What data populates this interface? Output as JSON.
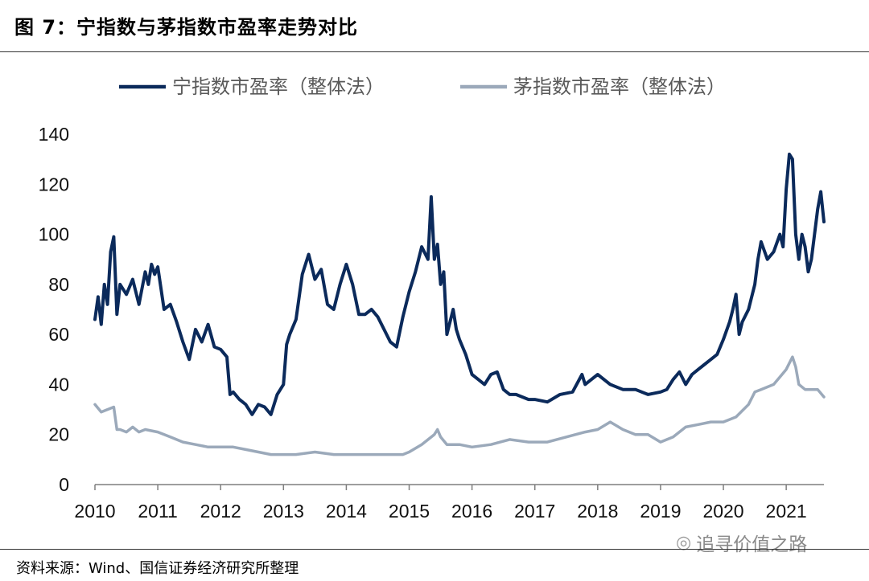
{
  "figure": {
    "title": "图 7：宁指数与茅指数市盈率走势对比",
    "source": "资料来源：Wind、国信证券经济研究所整理",
    "watermark": "追寻价值之路",
    "watermark_icon": "wechat-icon"
  },
  "chart_data": {
    "type": "line",
    "title": "图 7：宁指数与茅指数市盈率走势对比",
    "xlabel": "",
    "ylabel": "",
    "ylim": [
      0,
      140
    ],
    "xlim": [
      2010,
      2021.6
    ],
    "yticks": [
      "0",
      "20",
      "40",
      "60",
      "80",
      "100",
      "120",
      "140"
    ],
    "xticks": [
      "2010",
      "2011",
      "2012",
      "2013",
      "2014",
      "2015",
      "2016",
      "2017",
      "2018",
      "2019",
      "2020",
      "2021"
    ],
    "grid": false,
    "legend_position": "top",
    "series": [
      {
        "name": "宁指数市盈率（整体法）",
        "color": "#0b2a5b",
        "x": [
          2010.0,
          2010.05,
          2010.1,
          2010.15,
          2010.2,
          2010.25,
          2010.3,
          2010.35,
          2010.4,
          2010.5,
          2010.6,
          2010.7,
          2010.8,
          2010.85,
          2010.9,
          2010.95,
          2011.0,
          2011.1,
          2011.2,
          2011.3,
          2011.4,
          2011.5,
          2011.6,
          2011.7,
          2011.8,
          2011.9,
          2012.0,
          2012.1,
          2012.15,
          2012.2,
          2012.3,
          2012.4,
          2012.5,
          2012.6,
          2012.7,
          2012.8,
          2012.9,
          2013.0,
          2013.05,
          2013.1,
          2013.2,
          2013.3,
          2013.4,
          2013.5,
          2013.6,
          2013.7,
          2013.8,
          2013.9,
          2014.0,
          2014.1,
          2014.2,
          2014.3,
          2014.4,
          2014.5,
          2014.6,
          2014.7,
          2014.8,
          2014.9,
          2015.0,
          2015.1,
          2015.2,
          2015.3,
          2015.35,
          2015.4,
          2015.45,
          2015.5,
          2015.55,
          2015.6,
          2015.7,
          2015.75,
          2015.8,
          2015.9,
          2016.0,
          2016.1,
          2016.2,
          2016.3,
          2016.4,
          2016.5,
          2016.6,
          2016.7,
          2016.8,
          2016.9,
          2017.0,
          2017.2,
          2017.4,
          2017.6,
          2017.75,
          2017.8,
          2017.9,
          2018.0,
          2018.2,
          2018.4,
          2018.6,
          2018.8,
          2019.0,
          2019.1,
          2019.2,
          2019.3,
          2019.4,
          2019.5,
          2019.6,
          2019.7,
          2019.8,
          2019.9,
          2020.0,
          2020.1,
          2020.15,
          2020.2,
          2020.25,
          2020.3,
          2020.4,
          2020.5,
          2020.55,
          2020.6,
          2020.7,
          2020.8,
          2020.9,
          2020.95,
          2021.0,
          2021.05,
          2021.1,
          2021.15,
          2021.2,
          2021.25,
          2021.3,
          2021.35,
          2021.4,
          2021.45,
          2021.5,
          2021.55,
          2021.6
        ],
        "values": [
          66,
          75,
          64,
          80,
          72,
          93,
          99,
          68,
          80,
          76,
          82,
          72,
          85,
          80,
          88,
          84,
          87,
          70,
          72,
          65,
          57,
          50,
          62,
          57,
          64,
          55,
          54,
          51,
          36,
          37,
          34,
          32,
          28,
          32,
          31,
          28,
          36,
          40,
          56,
          60,
          66,
          84,
          92,
          82,
          86,
          72,
          70,
          80,
          88,
          80,
          68,
          68,
          70,
          67,
          62,
          57,
          55,
          67,
          77,
          85,
          95,
          90,
          115,
          90,
          96,
          80,
          85,
          60,
          70,
          62,
          58,
          52,
          44,
          42,
          40,
          44,
          45,
          38,
          36,
          36,
          35,
          34,
          34,
          33,
          36,
          37,
          44,
          40,
          42,
          44,
          40,
          38,
          38,
          36,
          37,
          38,
          42,
          45,
          40,
          44,
          46,
          48,
          50,
          52,
          58,
          65,
          70,
          76,
          60,
          65,
          70,
          80,
          90,
          97,
          90,
          93,
          100,
          95,
          118,
          132,
          130,
          100,
          90,
          100,
          95,
          85,
          90,
          100,
          110,
          117,
          105
        ]
      },
      {
        "name": "茅指数市盈率（整体法）",
        "color": "#9ba9ba",
        "x": [
          2010.0,
          2010.1,
          2010.2,
          2010.3,
          2010.35,
          2010.4,
          2010.5,
          2010.6,
          2010.7,
          2010.8,
          2011.0,
          2011.2,
          2011.4,
          2011.6,
          2011.8,
          2012.0,
          2012.2,
          2012.4,
          2012.6,
          2012.8,
          2013.0,
          2013.2,
          2013.5,
          2013.8,
          2014.0,
          2014.3,
          2014.6,
          2014.9,
          2015.0,
          2015.2,
          2015.4,
          2015.45,
          2015.5,
          2015.6,
          2015.8,
          2016.0,
          2016.3,
          2016.6,
          2016.9,
          2017.2,
          2017.5,
          2017.8,
          2018.0,
          2018.2,
          2018.4,
          2018.6,
          2018.8,
          2019.0,
          2019.2,
          2019.4,
          2019.6,
          2019.8,
          2020.0,
          2020.2,
          2020.4,
          2020.5,
          2020.6,
          2020.8,
          2020.9,
          2021.0,
          2021.1,
          2021.15,
          2021.2,
          2021.3,
          2021.4,
          2021.5,
          2021.6
        ],
        "values": [
          32,
          29,
          30,
          31,
          22,
          22,
          21,
          23,
          21,
          22,
          21,
          19,
          17,
          16,
          15,
          15,
          15,
          14,
          13,
          12,
          12,
          12,
          13,
          12,
          12,
          12,
          12,
          12,
          13,
          16,
          20,
          22,
          19,
          16,
          16,
          15,
          16,
          18,
          17,
          17,
          19,
          21,
          22,
          25,
          22,
          20,
          20,
          17,
          19,
          23,
          24,
          25,
          25,
          27,
          32,
          37,
          38,
          40,
          43,
          46,
          51,
          47,
          40,
          38,
          38,
          38,
          35
        ]
      }
    ]
  }
}
